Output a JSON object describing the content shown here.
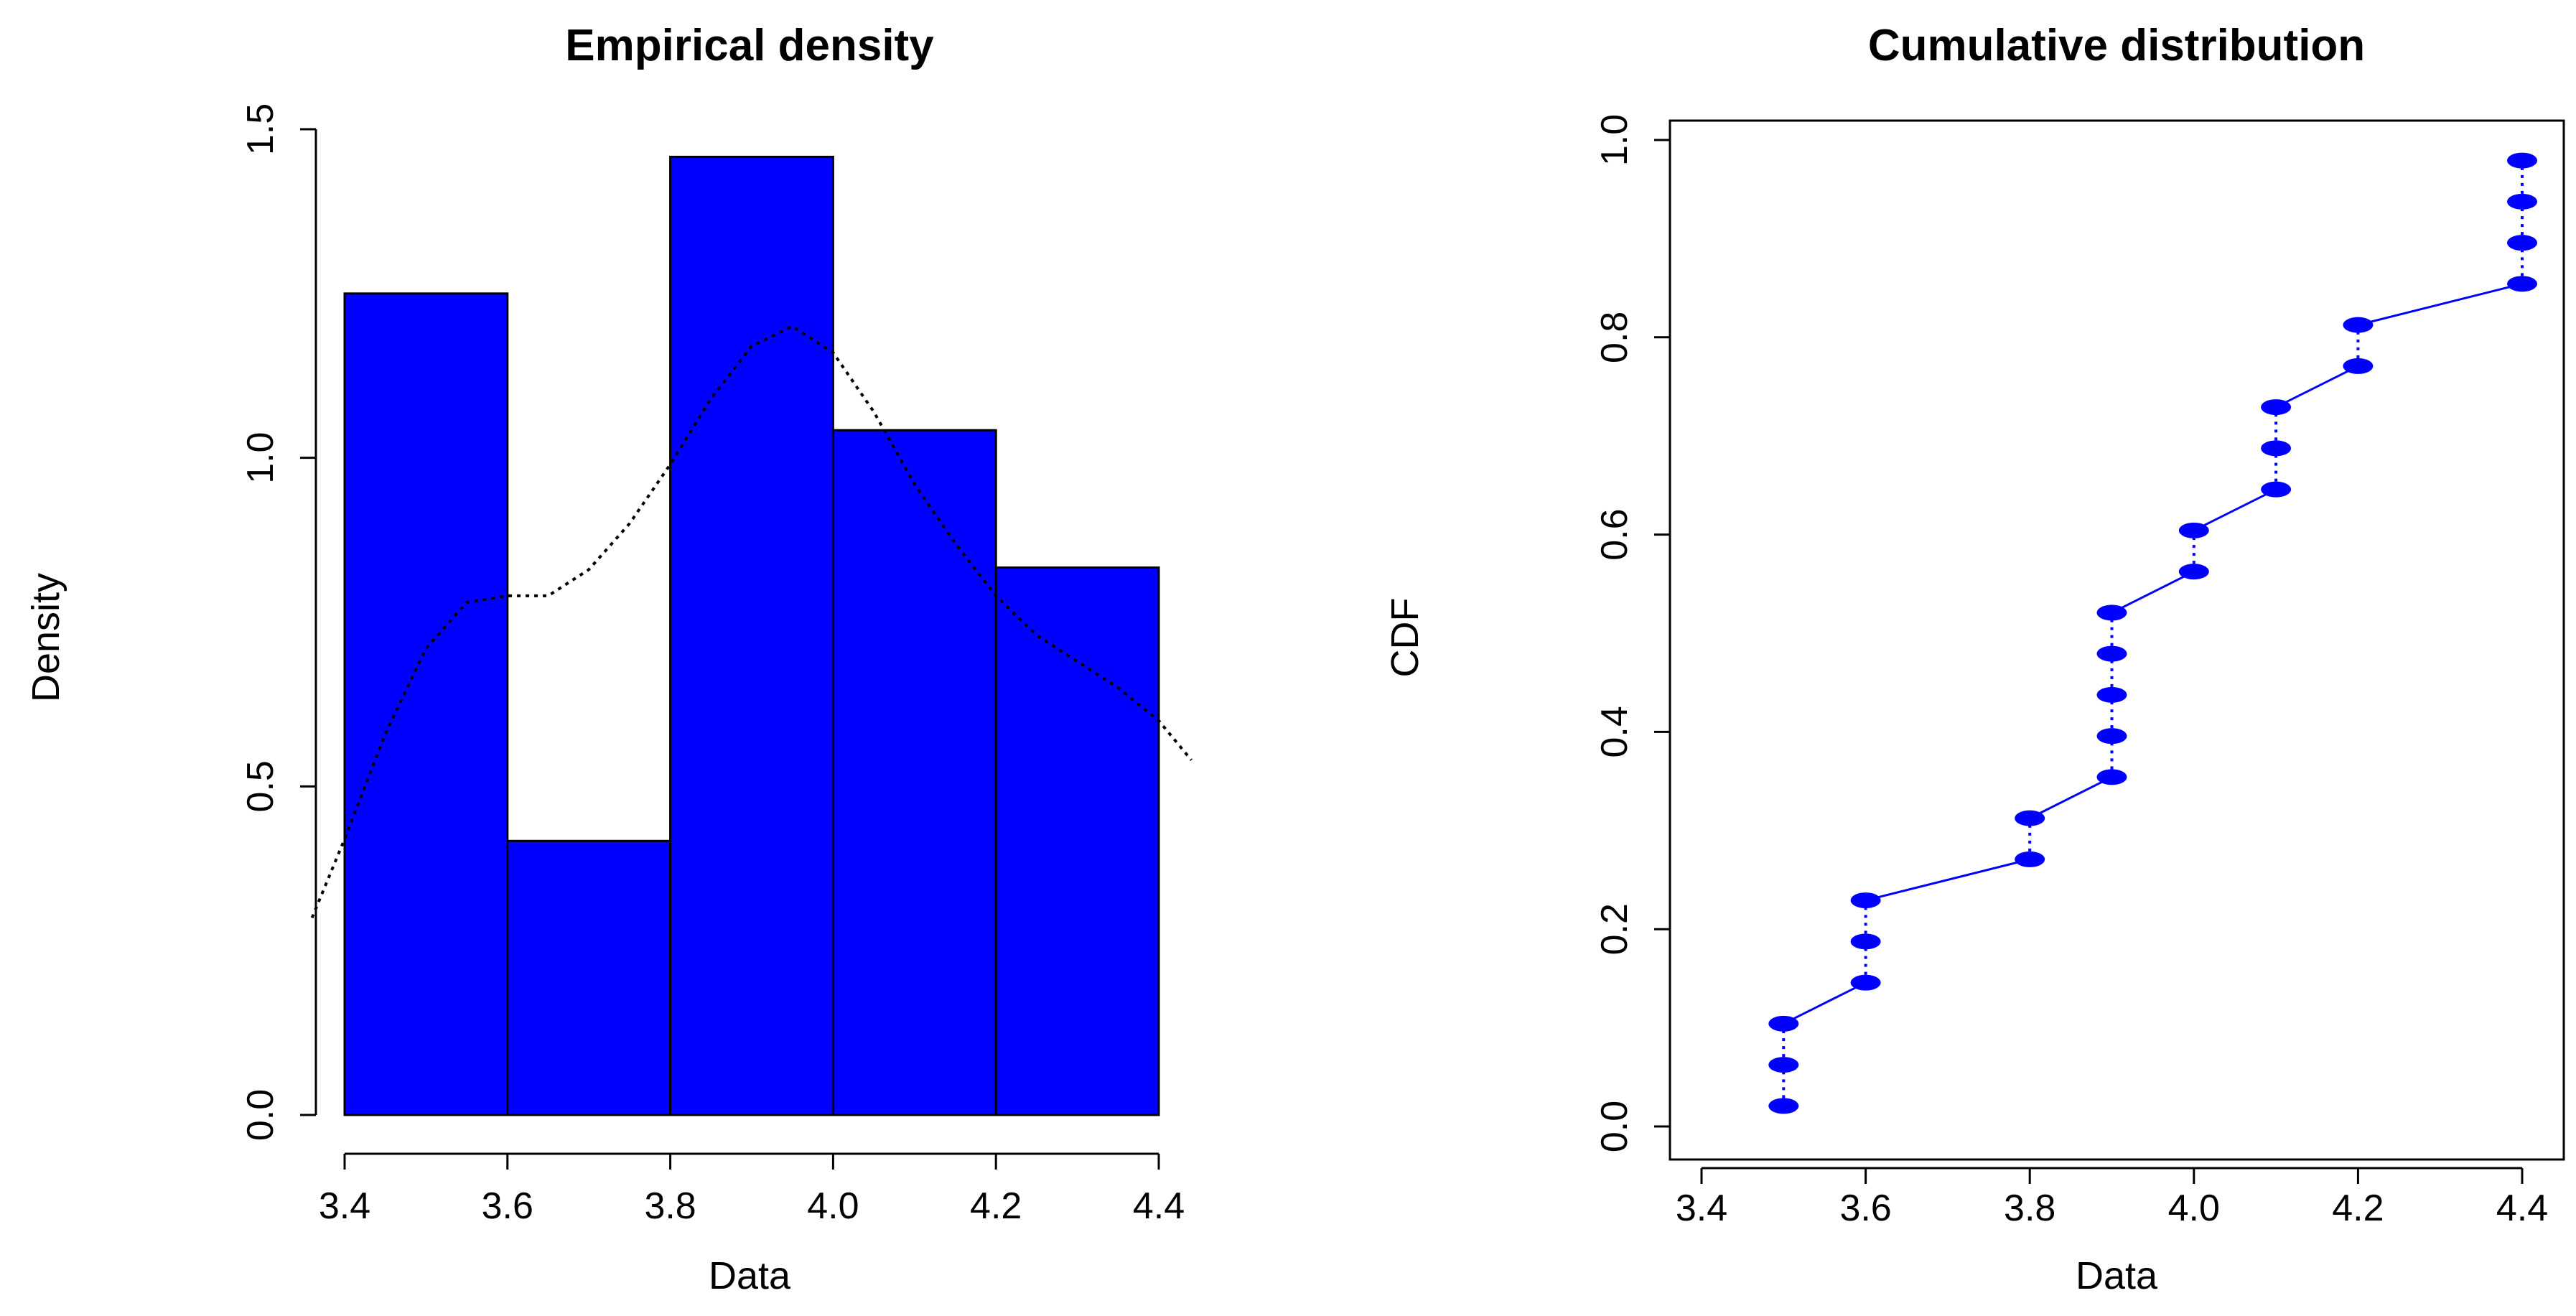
{
  "colors": {
    "bar_fill": "#0000ff",
    "bar_stroke": "#000000",
    "cdf_point": "#0000ff",
    "cdf_line": "#0000ff",
    "density_line": "#000000"
  },
  "chart_data": [
    {
      "type": "bar",
      "title": "Empirical density",
      "xlabel": "Data",
      "ylabel": "Density",
      "bins": [
        [
          3.4,
          3.6
        ],
        [
          3.6,
          3.8
        ],
        [
          3.8,
          4.0
        ],
        [
          4.0,
          4.2
        ],
        [
          4.2,
          4.4
        ]
      ],
      "values": [
        1.25,
        0.417,
        1.458,
        1.042,
        0.833
      ],
      "xlim": [
        3.4,
        4.4
      ],
      "ylim": [
        0,
        1.5
      ],
      "xticks": [
        "3.4",
        "3.6",
        "3.8",
        "4.0",
        "4.2",
        "4.4"
      ],
      "yticks": [
        "0.0",
        "0.5",
        "1.0",
        "1.5"
      ],
      "density_curve": {
        "style": "dotted",
        "x": [
          3.36,
          3.4,
          3.45,
          3.5,
          3.55,
          3.6,
          3.65,
          3.7,
          3.75,
          3.8,
          3.85,
          3.9,
          3.95,
          4.0,
          4.05,
          4.1,
          4.15,
          4.2,
          4.25,
          4.3,
          4.35,
          4.4,
          4.44
        ],
        "y": [
          0.3,
          0.42,
          0.58,
          0.71,
          0.78,
          0.79,
          0.79,
          0.83,
          0.9,
          0.99,
          1.09,
          1.17,
          1.2,
          1.16,
          1.07,
          0.96,
          0.87,
          0.79,
          0.73,
          0.69,
          0.65,
          0.6,
          0.54
        ]
      }
    },
    {
      "type": "scatter",
      "title": "Cumulative distribution",
      "xlabel": "Data",
      "ylabel": "CDF",
      "xlim": [
        3.4,
        4.4
      ],
      "ylim": [
        0,
        1.0
      ],
      "xticks": [
        "3.4",
        "3.6",
        "3.8",
        "4.0",
        "4.2",
        "4.4"
      ],
      "yticks": [
        "0.0",
        "0.2",
        "0.4",
        "0.6",
        "0.8",
        "1.0"
      ],
      "points": [
        [
          3.5,
          0.0208
        ],
        [
          3.5,
          0.0625
        ],
        [
          3.5,
          0.1042
        ],
        [
          3.6,
          0.1458
        ],
        [
          3.6,
          0.1875
        ],
        [
          3.6,
          0.2292
        ],
        [
          3.8,
          0.2708
        ],
        [
          3.8,
          0.3125
        ],
        [
          3.9,
          0.3542
        ],
        [
          3.9,
          0.3958
        ],
        [
          3.9,
          0.4375
        ],
        [
          3.9,
          0.4792
        ],
        [
          3.9,
          0.5208
        ],
        [
          4.0,
          0.5625
        ],
        [
          4.0,
          0.6042
        ],
        [
          4.1,
          0.6458
        ],
        [
          4.1,
          0.6875
        ],
        [
          4.1,
          0.7292
        ],
        [
          4.2,
          0.7708
        ],
        [
          4.2,
          0.8125
        ],
        [
          4.4,
          0.8542
        ],
        [
          4.4,
          0.8958
        ],
        [
          4.4,
          0.9375
        ],
        [
          4.4,
          0.9792
        ]
      ]
    }
  ]
}
